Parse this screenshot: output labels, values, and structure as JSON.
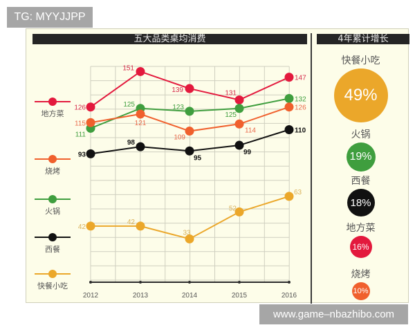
{
  "watermarks": {
    "top": "TG: MYYJJPP",
    "bottom": "www.game–nbazhibo.com"
  },
  "left_panel": {
    "title": "五大品类桌均消费"
  },
  "right_panel": {
    "title": "4年累计增长",
    "items": [
      {
        "label": "快餐小吃",
        "value": "49%",
        "color": "#eba72a",
        "size": 78,
        "font": 24
      },
      {
        "label": "火锅",
        "value": "19%",
        "color": "#3f9e3e",
        "size": 42,
        "font": 16
      },
      {
        "label": "西餐",
        "value": "18%",
        "color": "#111111",
        "size": 40,
        "font": 15
      },
      {
        "label": "地方菜",
        "value": "16%",
        "color": "#e3193d",
        "size": 32,
        "font": 12
      },
      {
        "label": "烧烤",
        "value": "10%",
        "color": "#f0602d",
        "size": 26,
        "font": 11
      }
    ]
  },
  "legend": [
    {
      "label": "地方菜",
      "color": "#e3193d"
    },
    {
      "label": "烧烤",
      "color": "#f0602d"
    },
    {
      "label": "火锅",
      "color": "#3f9e3e"
    },
    {
      "label": "西餐",
      "color": "#111111"
    },
    {
      "label": "快餐小吃",
      "color": "#eba72a"
    }
  ],
  "chart_data": {
    "type": "line",
    "title": "五大品类桌均消费",
    "xlabel": "",
    "ylabel": "",
    "x": [
      "2012",
      "2013",
      "2014",
      "2015",
      "2016"
    ],
    "grid": true,
    "legend_position": "left",
    "series": [
      {
        "name": "地方菜",
        "color": "#e3193d",
        "values": [
          126,
          151,
          139,
          131,
          147
        ],
        "label_color": "#d5294a"
      },
      {
        "name": "火锅",
        "color": "#3f9e3e",
        "values": [
          111,
          125,
          123,
          125,
          132
        ],
        "label_color": "#3f9e3e"
      },
      {
        "name": "烧烤",
        "color": "#f0602d",
        "values": [
          115,
          121,
          109,
          114,
          126
        ],
        "label_color": "#e9694a"
      },
      {
        "name": "西餐",
        "color": "#111111",
        "values": [
          93,
          98,
          95,
          99,
          110
        ],
        "label_color": "#111111"
      },
      {
        "name": "快餐小吃",
        "color": "#eba72a",
        "values": [
          42,
          42,
          33,
          52,
          63
        ],
        "label_color": "#d9b15a"
      }
    ],
    "side_summary": {
      "title": "4年累计增长",
      "categories": [
        "快餐小吃",
        "火锅",
        "西餐",
        "地方菜",
        "烧烤"
      ],
      "values_pct": [
        49,
        19,
        18,
        16,
        10
      ]
    }
  }
}
